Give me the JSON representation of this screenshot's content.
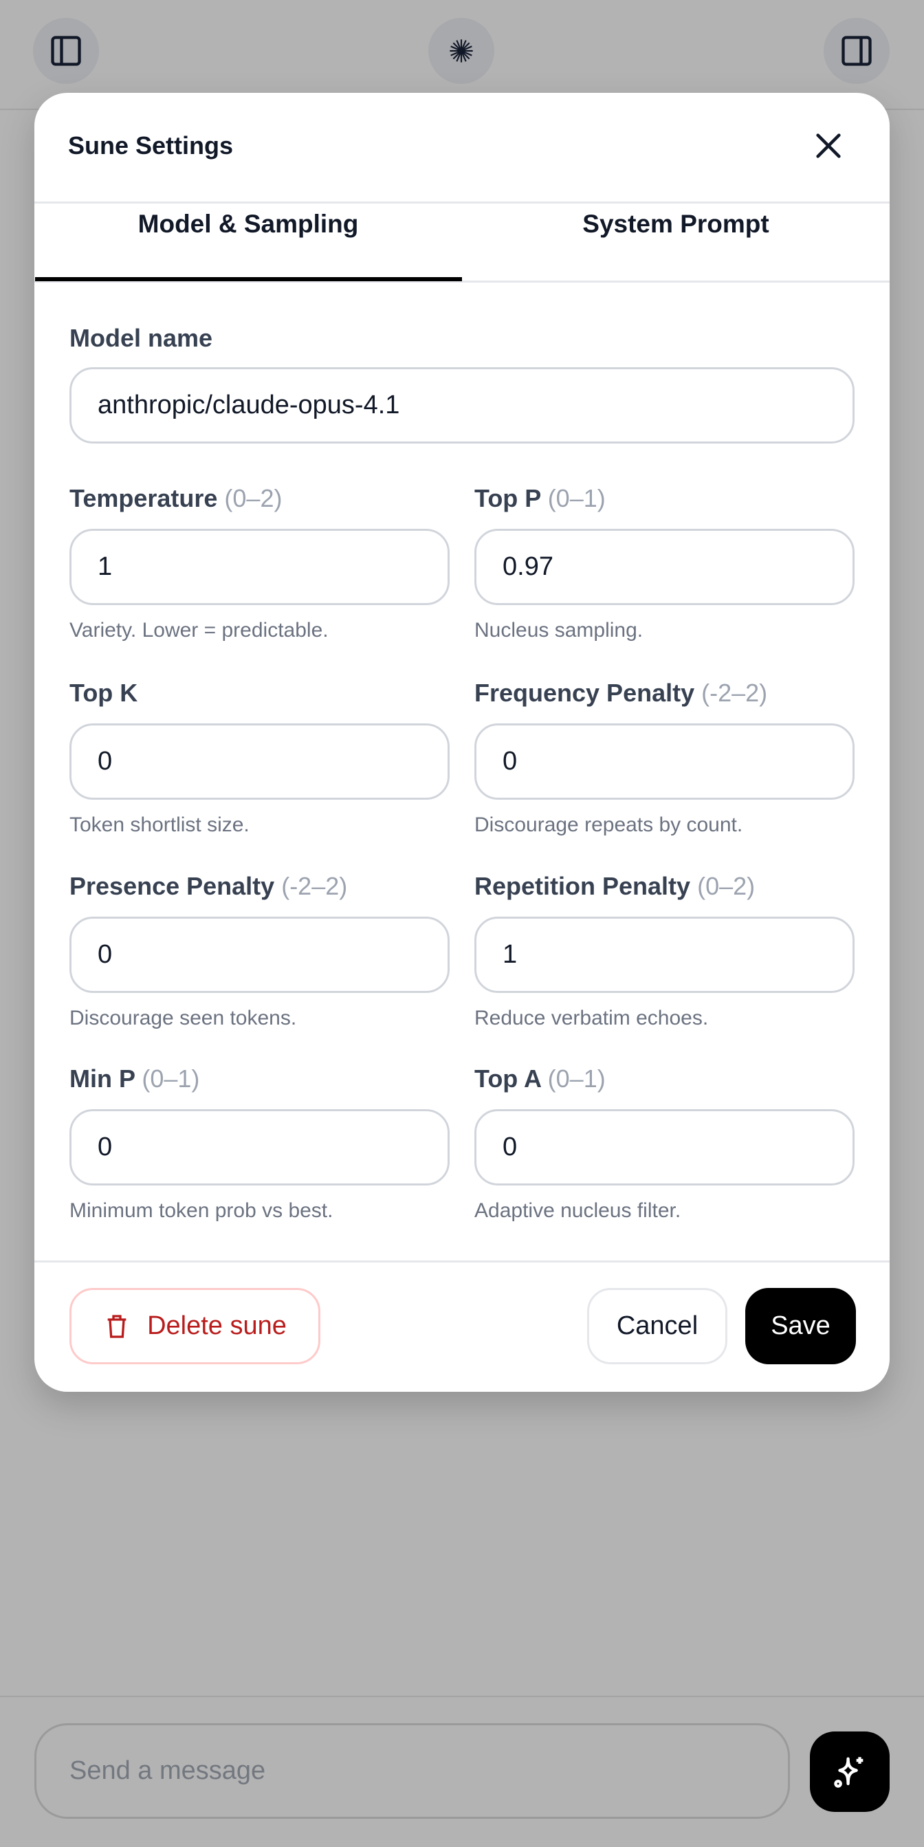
{
  "topbar": {
    "left_icon": "sidebar-left-icon",
    "center_icon": "starburst-logo-icon",
    "right_icon": "sidebar-right-icon"
  },
  "modal": {
    "title": "Sune Settings",
    "close_icon": "close-icon",
    "tabs": [
      {
        "label": "Model & Sampling",
        "active": true
      },
      {
        "label": "System Prompt",
        "active": false
      }
    ],
    "model_name": {
      "label": "Model name",
      "value": "anthropic/claude-opus-4.1"
    },
    "fields": [
      {
        "label": "Temperature",
        "range": "(0–2)",
        "value": "1",
        "help": "Variety. Lower = predictable."
      },
      {
        "label": "Top P",
        "range": "(0–1)",
        "value": "0.97",
        "help": "Nucleus sampling."
      },
      {
        "label": "Top K",
        "range": "",
        "value": "0",
        "help": "Token shortlist size."
      },
      {
        "label": "Frequency Penalty",
        "range": "(-2–2)",
        "value": "0",
        "help": "Discourage repeats by count."
      },
      {
        "label": "Presence Penalty",
        "range": "(-2–2)",
        "value": "0",
        "help": "Discourage seen tokens."
      },
      {
        "label": "Repetition Penalty",
        "range": "(0–2)",
        "value": "1",
        "help": "Reduce verbatim echoes."
      },
      {
        "label": "Min P",
        "range": "(0–1)",
        "value": "0",
        "help": "Minimum token prob vs best."
      },
      {
        "label": "Top A",
        "range": "(0–1)",
        "value": "0",
        "help": "Adaptive nucleus filter."
      }
    ],
    "footer": {
      "delete_label": "Delete sune",
      "cancel_label": "Cancel",
      "save_label": "Save"
    },
    "colors": {
      "danger": "#b91c1c",
      "primary": "#000000"
    }
  },
  "composer": {
    "placeholder": "Send a message",
    "send_icon": "sparkles-icon"
  }
}
